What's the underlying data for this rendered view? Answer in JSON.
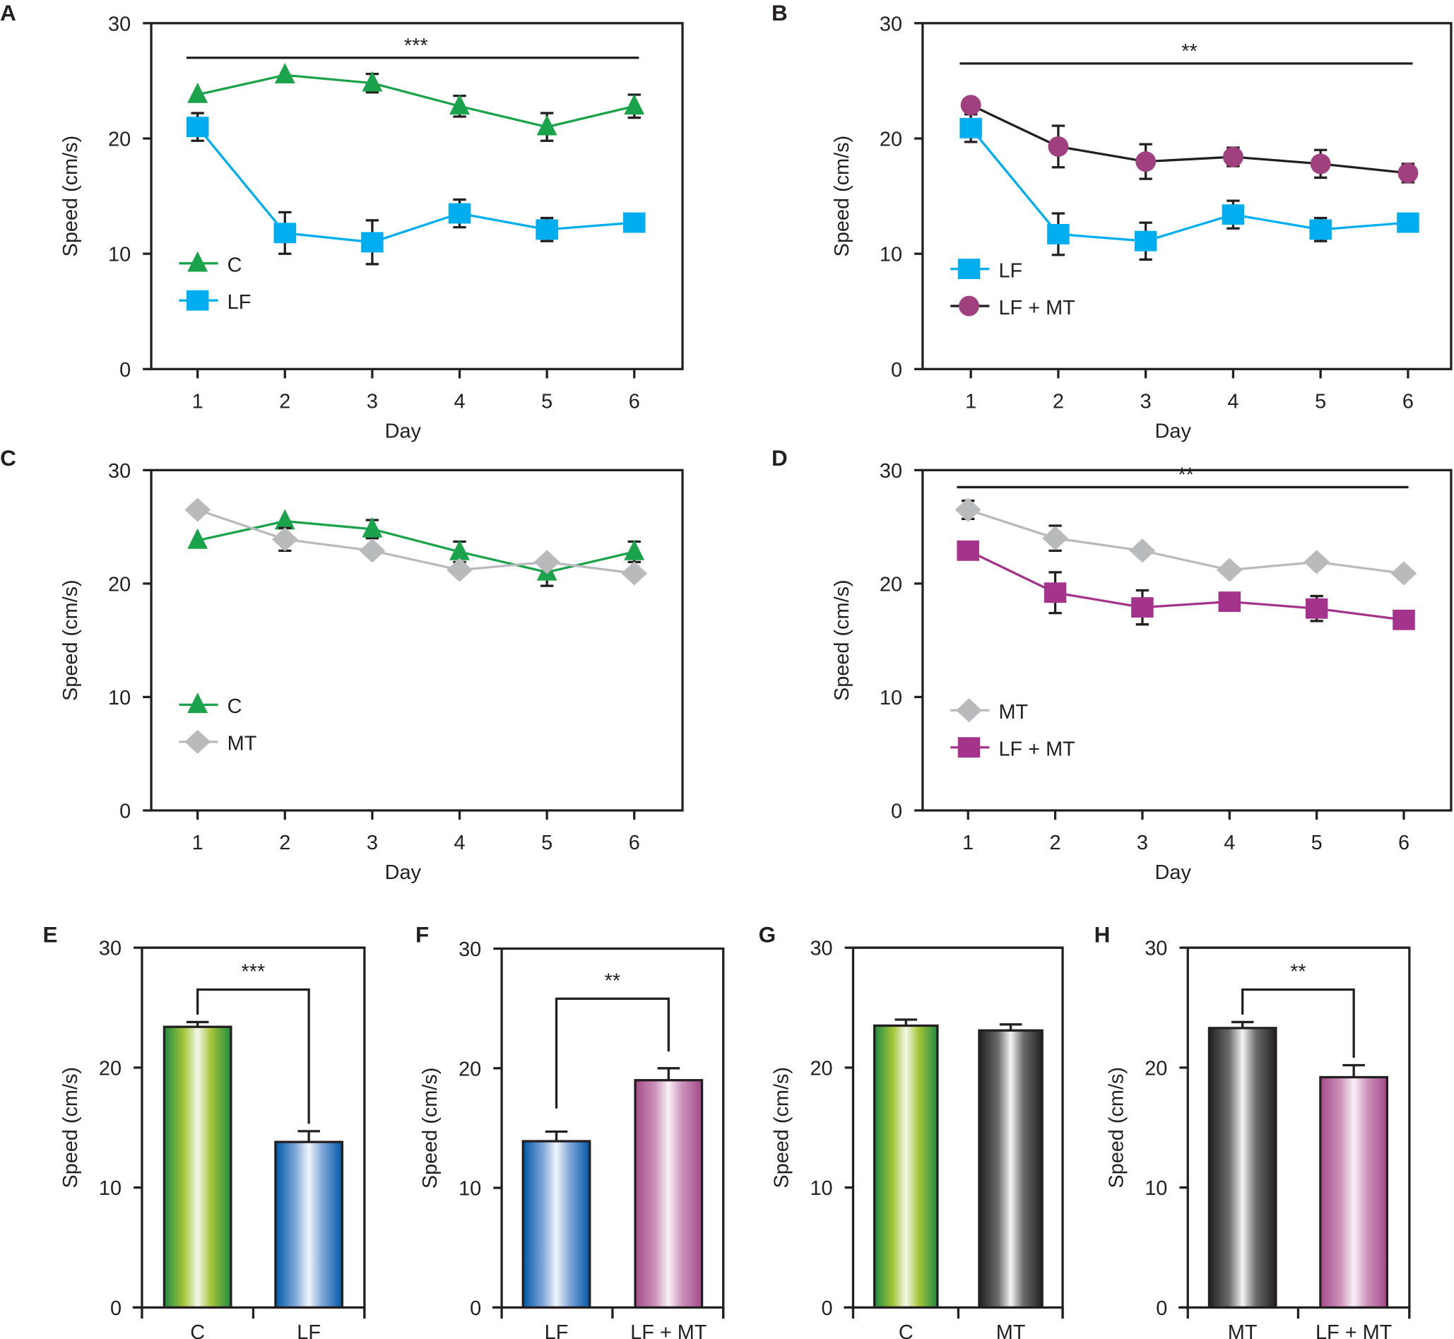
{
  "colors": {
    "C": "#1aa34a",
    "LF": "#00aeef",
    "LFMT_circle": "#a0407f",
    "MT": "#b9babc",
    "LFMT_square": "#a3338b",
    "axis": "#231f20"
  },
  "chart_data": [
    {
      "panel": "A",
      "type": "line",
      "xlabel": "Day",
      "ylabel": "Speed (cm/s)",
      "x": [
        1,
        2,
        3,
        4,
        5,
        6
      ],
      "ylim": [
        0,
        30
      ],
      "yticks": [
        0,
        10,
        20,
        30
      ],
      "grid": false,
      "legend": "bottom-left",
      "significance": "***",
      "significance_level": 27,
      "series": [
        {
          "name": "C",
          "marker": "triangle",
          "color": "#1aa34a",
          "line": "#1aa34a",
          "values": [
            23.8,
            25.5,
            24.8,
            22.8,
            21.0,
            22.8
          ],
          "err": [
            0,
            0,
            0.8,
            0.9,
            1.2,
            1.0
          ]
        },
        {
          "name": "LF",
          "marker": "square",
          "color": "#00aeef",
          "line": "#00aeef",
          "values": [
            21.0,
            11.8,
            11.0,
            13.5,
            12.1,
            12.7
          ],
          "err": [
            1.2,
            1.8,
            1.9,
            1.2,
            1.0,
            0
          ]
        }
      ]
    },
    {
      "panel": "B",
      "type": "line",
      "xlabel": "Day",
      "ylabel": "Speed (cm/s)",
      "x": [
        1,
        2,
        3,
        4,
        5,
        6
      ],
      "ylim": [
        0,
        30
      ],
      "yticks": [
        0,
        10,
        20,
        30
      ],
      "grid": false,
      "legend": "bottom-left",
      "significance": "**",
      "significance_level": 26.5,
      "series": [
        {
          "name": "LF",
          "marker": "square",
          "color": "#00aeef",
          "line": "#00aeef",
          "values": [
            20.9,
            11.7,
            11.1,
            13.4,
            12.1,
            12.7
          ],
          "err": [
            1.2,
            1.8,
            1.6,
            1.2,
            1.0,
            0
          ]
        },
        {
          "name": "LF + MT",
          "marker": "circle",
          "color": "#a0407f",
          "line": "#231f20",
          "values": [
            22.9,
            19.3,
            18.0,
            18.4,
            17.8,
            17.0
          ],
          "err": [
            0,
            1.8,
            1.5,
            0.8,
            1.2,
            0.8
          ]
        }
      ]
    },
    {
      "panel": "C",
      "type": "line",
      "xlabel": "Day",
      "ylabel": "Speed (cm/s)",
      "x": [
        1,
        2,
        3,
        4,
        5,
        6
      ],
      "ylim": [
        0,
        30
      ],
      "yticks": [
        0,
        10,
        20,
        30
      ],
      "grid": false,
      "legend": "bottom-left",
      "significance": "",
      "series": [
        {
          "name": "C",
          "marker": "triangle",
          "color": "#1aa34a",
          "line": "#1aa34a",
          "values": [
            23.8,
            25.5,
            24.8,
            22.8,
            21.0,
            22.8
          ],
          "err": [
            0,
            0,
            0.8,
            0.9,
            1.2,
            0.9
          ]
        },
        {
          "name": "MT",
          "marker": "diamond",
          "color": "#b9babc",
          "line": "#b9babc",
          "values": [
            26.5,
            23.9,
            22.9,
            21.2,
            21.9,
            20.9
          ],
          "err": [
            0,
            1.0,
            0,
            0,
            0,
            0
          ]
        }
      ]
    },
    {
      "panel": "D",
      "type": "line",
      "xlabel": "Day",
      "ylabel": "Speed (cm/s)",
      "x": [
        1,
        2,
        3,
        4,
        5,
        6
      ],
      "ylim": [
        0,
        30
      ],
      "yticks": [
        0,
        10,
        20,
        30
      ],
      "grid": false,
      "legend": "bottom-left",
      "significance": "**",
      "significance_level": 28.5,
      "series": [
        {
          "name": "MT",
          "marker": "diamond",
          "color": "#b9babc",
          "line": "#b9babc",
          "values": [
            26.5,
            24.0,
            22.9,
            21.2,
            21.9,
            20.9
          ],
          "err": [
            0.8,
            1.1,
            0,
            0,
            0,
            0
          ]
        },
        {
          "name": "LF + MT",
          "marker": "square",
          "color": "#a3338b",
          "line": "#a3338b",
          "values": [
            22.9,
            19.2,
            17.9,
            18.4,
            17.8,
            16.8
          ],
          "err": [
            0,
            1.8,
            1.5,
            0,
            1.1,
            0
          ]
        }
      ]
    },
    {
      "panel": "E",
      "type": "bar",
      "ylabel": "Speed (cm/s)",
      "categories": [
        "C",
        "LF"
      ],
      "values": [
        23.4,
        13.8
      ],
      "err": [
        0.4,
        0.9
      ],
      "fills": [
        "green",
        "blue"
      ],
      "ylim": [
        0,
        30
      ],
      "yticks": [
        0,
        10,
        20,
        30
      ],
      "significance": "***"
    },
    {
      "panel": "F",
      "type": "bar",
      "ylabel": "Speed (cm/s)",
      "categories": [
        "LF",
        "LF + MT"
      ],
      "values": [
        13.9,
        19.0
      ],
      "err": [
        0.8,
        1.0
      ],
      "fills": [
        "blue",
        "purple"
      ],
      "ylim": [
        0,
        30
      ],
      "yticks": [
        0,
        10,
        20,
        30
      ],
      "significance": "**"
    },
    {
      "panel": "G",
      "type": "bar",
      "ylabel": "Speed (cm/s)",
      "categories": [
        "C",
        "MT"
      ],
      "values": [
        23.5,
        23.1
      ],
      "err": [
        0.5,
        0.5
      ],
      "fills": [
        "green",
        "black"
      ],
      "ylim": [
        0,
        30
      ],
      "yticks": [
        0,
        10,
        20,
        30
      ],
      "significance": ""
    },
    {
      "panel": "H",
      "type": "bar",
      "ylabel": "Speed (cm/s)",
      "categories": [
        "MT",
        "LF + MT"
      ],
      "values": [
        23.3,
        19.2
      ],
      "err": [
        0.5,
        1.0
      ],
      "fills": [
        "black",
        "purple"
      ],
      "ylim": [
        0,
        30
      ],
      "yticks": [
        0,
        10,
        20,
        30
      ],
      "significance": "**"
    }
  ]
}
